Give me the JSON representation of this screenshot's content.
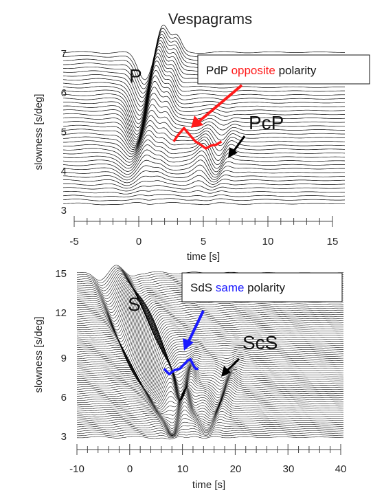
{
  "title": "Vespagrams",
  "colors": {
    "highlight_red": "#ff1a1a",
    "highlight_blue": "#1a1aff",
    "trace": "#000000"
  },
  "chart_data": [
    {
      "type": "line",
      "panel": "top",
      "xlabel": "time [s]",
      "ylabel": "slowness [s/deg]",
      "xlim": [
        -5,
        15
      ],
      "ylim": [
        3,
        7
      ],
      "xticks": [
        "-5",
        "0",
        "5",
        "10",
        "15"
      ],
      "yticks": [
        "3",
        "4",
        "5",
        "6",
        "7"
      ],
      "trace_slowness_range": [
        3.1,
        7.0
      ],
      "trace_count": 40,
      "phases": [
        {
          "label": "P",
          "time": 0.2,
          "slowness": 6.3
        },
        {
          "label": "PcP",
          "time": 6.3,
          "slowness": 4.4
        }
      ],
      "annotation_box": {
        "prefix": "PdP ",
        "highlight": "opposite",
        "suffix": " polarity",
        "highlight_color": "red"
      },
      "highlighted_trace": {
        "color": "red",
        "x": [
          2.7,
          3.0,
          3.5,
          4.0,
          4.4,
          4.8,
          5.2,
          5.6,
          6.0,
          6.4
        ],
        "y": [
          4.7,
          4.85,
          5.05,
          4.85,
          4.7,
          4.62,
          4.52,
          4.6,
          4.62,
          4.7
        ]
      }
    },
    {
      "type": "line",
      "panel": "bottom",
      "xlabel": "time [s]",
      "ylabel": "slowness [s/deg]",
      "xlim": [
        -10,
        40
      ],
      "ylim": [
        3,
        15
      ],
      "xticks": [
        "-10",
        "0",
        "10",
        "20",
        "30",
        "40"
      ],
      "yticks": [
        "3",
        "6",
        "9",
        "12",
        "15"
      ],
      "trace_slowness_range": [
        3.0,
        15.0
      ],
      "trace_count": 80,
      "phases": [
        {
          "label": "S",
          "time": 0.5,
          "slowness": 11.5
        },
        {
          "label": "ScS",
          "time": 17.0,
          "slowness": 5.8
        }
      ],
      "annotation_box": {
        "prefix": "SdS ",
        "highlight": "same",
        "suffix": " polarity",
        "highlight_color": "blue"
      },
      "highlighted_trace": {
        "color": "blue",
        "x": [
          6.5,
          7.5,
          8.5,
          9.5,
          10.5,
          11.0,
          11.5,
          12.0,
          12.5,
          13.0
        ],
        "y": [
          8.0,
          7.6,
          7.9,
          8.0,
          8.4,
          8.6,
          8.7,
          8.3,
          8.0,
          8.0
        ]
      }
    }
  ]
}
